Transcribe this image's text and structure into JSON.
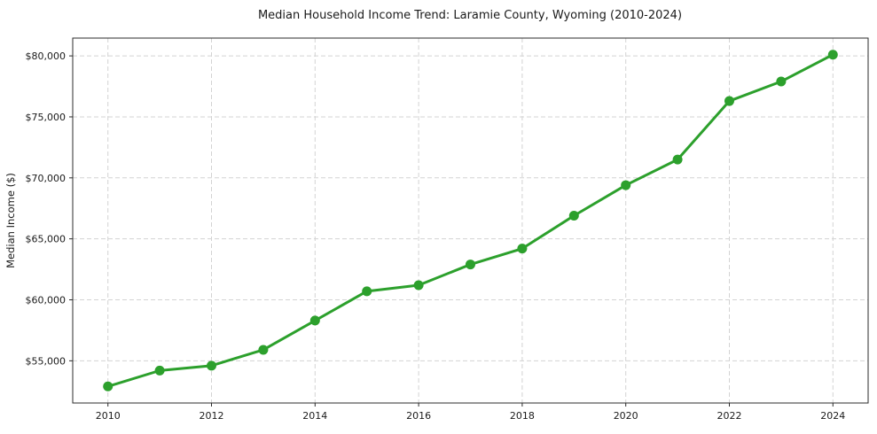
{
  "chart_data": {
    "type": "line",
    "title": "Median Household Income Trend: Laramie County, Wyoming (2010-2024)",
    "xlabel": "",
    "ylabel": "Median Income ($)",
    "x": [
      2010,
      2011,
      2012,
      2013,
      2014,
      2015,
      2016,
      2017,
      2018,
      2019,
      2020,
      2021,
      2022,
      2023,
      2024
    ],
    "series": [
      {
        "name": "Median Household Income",
        "values": [
          52900,
          54200,
          54600,
          55900,
          58300,
          60700,
          61200,
          62900,
          64200,
          66900,
          69400,
          71500,
          76300,
          77900,
          80100
        ]
      }
    ],
    "xticks": {
      "values": [
        2010,
        2012,
        2014,
        2016,
        2018,
        2020,
        2022,
        2024
      ],
      "labels": [
        "2010",
        "2012",
        "2014",
        "2016",
        "2018",
        "2020",
        "2022",
        "2024"
      ]
    },
    "yticks": {
      "values": [
        55000,
        60000,
        65000,
        70000,
        75000,
        80000
      ],
      "labels": [
        "$55,000",
        "$60,000",
        "$65,000",
        "$70,000",
        "$75,000",
        "$80,000"
      ]
    },
    "xlim": [
      2009.32,
      2024.68
    ],
    "ylim": [
      51540,
      81460
    ],
    "grid": true,
    "grid_style": "dashed",
    "legend": false,
    "style": {
      "line_color": "#2ca02c",
      "marker": "circle",
      "marker_radius": 5.5,
      "line_width": 3,
      "grid_color": "#d3d3d3",
      "grid_dash": "5 3",
      "spine_color": "#2b2b2b",
      "text_color": "#1a1a1a",
      "background": "#ffffff"
    }
  }
}
